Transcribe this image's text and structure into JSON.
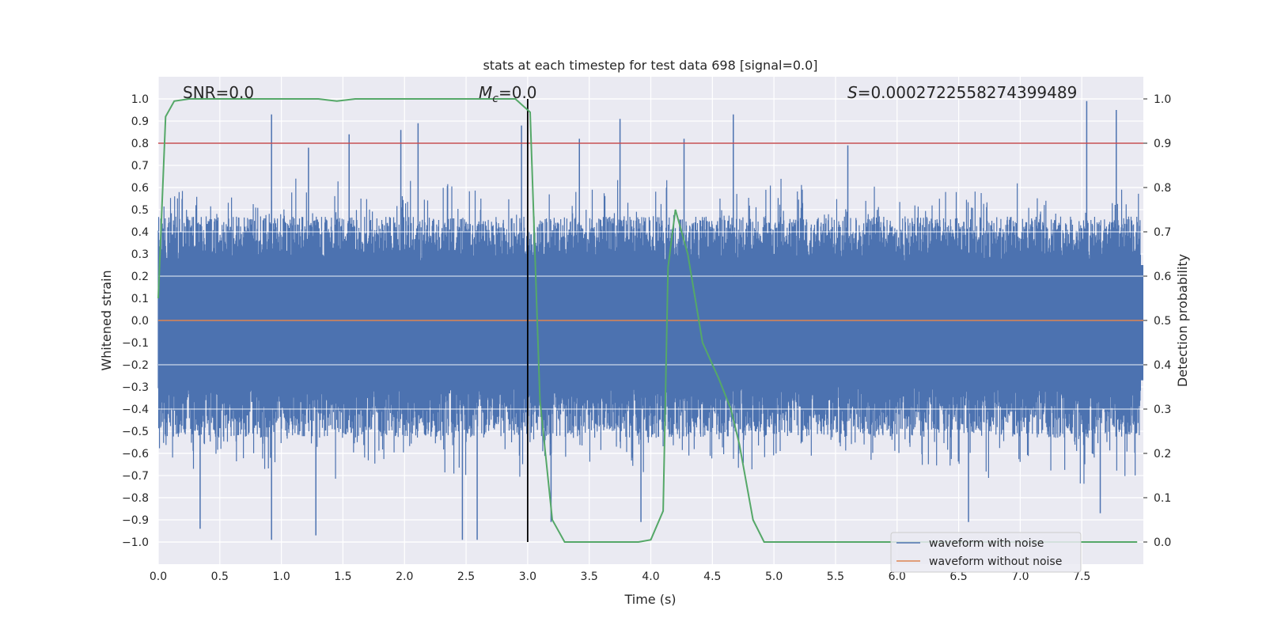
{
  "chart_data": {
    "type": "line",
    "title": "stats at each timestep for test data 698 [signal=0.0]",
    "xlabel": "Time (s)",
    "ylabel_left": "Whitened strain",
    "ylabel_right": "Detection probability",
    "xlim": [
      0.0,
      8.0
    ],
    "ylim_left": [
      -1.1,
      1.1
    ],
    "ylim_right": [
      -0.05,
      1.05
    ],
    "x_ticks": [
      "0.0",
      "0.5",
      "1.0",
      "1.5",
      "2.0",
      "2.5",
      "3.0",
      "3.5",
      "4.0",
      "4.5",
      "5.0",
      "5.5",
      "6.0",
      "6.5",
      "7.0",
      "7.5"
    ],
    "y_ticks_left": [
      "-1.0",
      "-0.9",
      "-0.8",
      "-0.7",
      "-0.6",
      "-0.5",
      "-0.4",
      "-0.3",
      "-0.2",
      "-0.1",
      "0.0",
      "0.1",
      "0.2",
      "0.3",
      "0.4",
      "0.5",
      "0.6",
      "0.7",
      "0.8",
      "0.9",
      "1.0"
    ],
    "y_ticks_right": [
      "0.0",
      "0.1",
      "0.2",
      "0.3",
      "0.4",
      "0.5",
      "0.6",
      "0.7",
      "0.8",
      "0.9",
      "1.0"
    ],
    "annotations": {
      "snr": "SNR=0.0",
      "mc_symbol": "M",
      "mc_sub": "c",
      "mc_value": "=0.0",
      "s_symbol": "S",
      "s_value": "=0.0002722558274399489"
    },
    "threshold": {
      "axis": "right",
      "value": 0.9,
      "color": "#c44e52"
    },
    "marker_line": {
      "x": 3.0,
      "ymin": -1.0,
      "ymax": 1.0,
      "color": "#000000"
    },
    "noise_envelope": {
      "typical_peak": 0.45,
      "max_peak": 0.99,
      "min_peak": -1.0
    },
    "series": [
      {
        "name": "waveform with noise",
        "color": "#4c72b0",
        "axis": "left",
        "peaks_pos": [
          {
            "x": 0.92,
            "y": 0.93
          },
          {
            "x": 1.22,
            "y": 0.78
          },
          {
            "x": 1.55,
            "y": 0.84
          },
          {
            "x": 1.97,
            "y": 0.86
          },
          {
            "x": 2.11,
            "y": 0.89
          },
          {
            "x": 2.95,
            "y": 0.88
          },
          {
            "x": 3.42,
            "y": 0.82
          },
          {
            "x": 3.75,
            "y": 0.91
          },
          {
            "x": 4.27,
            "y": 0.82
          },
          {
            "x": 4.67,
            "y": 0.93
          },
          {
            "x": 5.6,
            "y": 0.79
          },
          {
            "x": 7.54,
            "y": 0.99
          },
          {
            "x": 7.78,
            "y": 0.95
          }
        ],
        "peaks_neg": [
          {
            "x": 0.34,
            "y": -0.94
          },
          {
            "x": 0.92,
            "y": -0.99
          },
          {
            "x": 1.28,
            "y": -0.97
          },
          {
            "x": 2.47,
            "y": -0.99
          },
          {
            "x": 2.59,
            "y": -0.99
          },
          {
            "x": 3.19,
            "y": -0.91
          },
          {
            "x": 3.92,
            "y": -0.91
          },
          {
            "x": 6.58,
            "y": -0.91
          },
          {
            "x": 7.65,
            "y": -0.87
          }
        ]
      },
      {
        "name": "waveform without noise",
        "color": "#dd8452",
        "axis": "left",
        "x": [
          0.0,
          8.0
        ],
        "y": [
          0.0,
          0.0
        ]
      },
      {
        "name": "detection probability",
        "color": "#55a868",
        "axis": "right",
        "x": [
          0.0,
          0.06,
          0.13,
          0.25,
          1.3,
          1.45,
          1.6,
          2.9,
          2.98,
          3.02,
          3.1,
          3.2,
          3.3,
          3.5,
          3.9,
          4.0,
          4.1,
          4.14,
          4.2,
          4.3,
          4.42,
          4.55,
          4.65,
          4.72,
          4.83,
          4.92,
          5.0,
          7.95
        ],
        "y": [
          0.55,
          0.96,
          0.995,
          1.0,
          1.0,
          0.995,
          1.0,
          1.0,
          0.98,
          0.97,
          0.32,
          0.05,
          0.0,
          0.0,
          0.0,
          0.005,
          0.07,
          0.62,
          0.75,
          0.65,
          0.45,
          0.37,
          0.3,
          0.22,
          0.05,
          0.0,
          0.0,
          0.0
        ]
      }
    ],
    "legend": {
      "position": "lower-right",
      "entries": [
        {
          "label": "waveform with noise",
          "color": "#4c72b0"
        },
        {
          "label": "waveform without noise",
          "color": "#dd8452"
        }
      ]
    }
  }
}
